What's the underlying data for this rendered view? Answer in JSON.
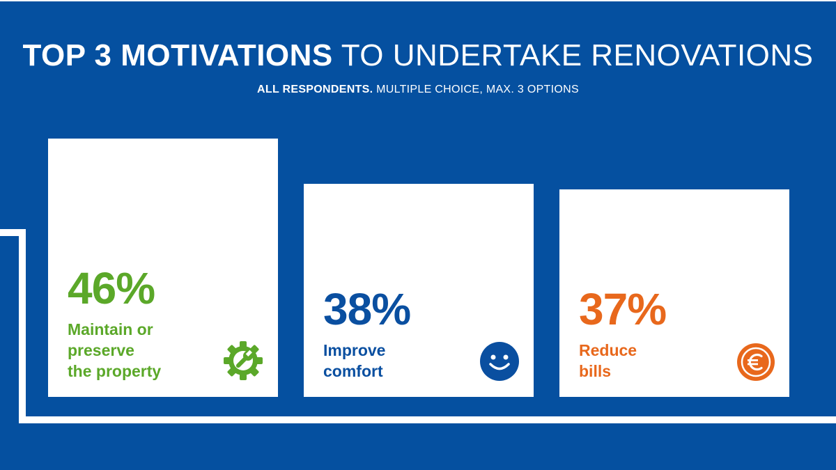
{
  "header": {
    "title_bold": "TOP 3 MOTIVATIONS",
    "title_light": "TO UNDERTAKE RENOVATIONS",
    "subtitle_bold": "ALL RESPONDENTS.",
    "subtitle_light": "MULTIPLE CHOICE, MAX. 3 OPTIONS"
  },
  "colors": {
    "background": "#0550A0",
    "green": "#5BA829",
    "blue": "#0A4FA0",
    "orange": "#E8681C"
  },
  "chart_data": {
    "type": "bar",
    "title": "TOP 3 MOTIVATIONS TO UNDERTAKE RENOVATIONS",
    "subtitle": "ALL RESPONDENTS. MULTIPLE CHOICE, MAX. 3 OPTIONS",
    "unit": "%",
    "categories": [
      "Maintain or preserve the property",
      "Improve comfort",
      "Reduce bills"
    ],
    "values": [
      46,
      38,
      37
    ],
    "items": [
      {
        "percent_label": "46%",
        "label": "Maintain or\npreserve\nthe property",
        "icon": "gear-wrench-icon"
      },
      {
        "percent_label": "38%",
        "label": "Improve\ncomfort",
        "icon": "smiley-icon"
      },
      {
        "percent_label": "37%",
        "label": "Reduce\nbills",
        "icon": "euro-icon"
      }
    ]
  }
}
